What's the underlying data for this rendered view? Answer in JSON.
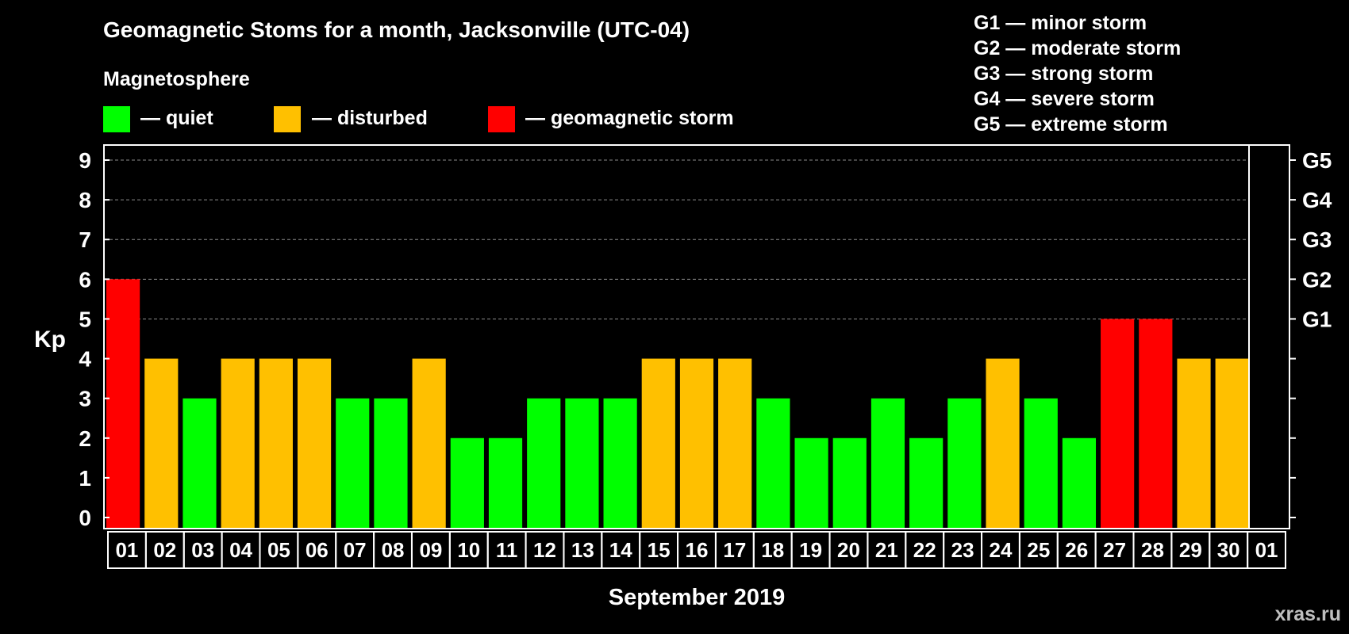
{
  "title": "Geomagnetic Stoms for a month, Jacksonville (UTC-04)",
  "legend": {
    "heading": "Magnetosphere",
    "items": [
      {
        "label": "— quiet",
        "color": "#00ff00"
      },
      {
        "label": "— disturbed",
        "color": "#ffc000"
      },
      {
        "label": "— geomagnetic storm",
        "color": "#ff0000"
      }
    ]
  },
  "storm_scale": [
    "G1 — minor storm",
    "G2 — moderate storm",
    "G3 — strong storm",
    "G4 — severe storm",
    "G5 — extreme storm"
  ],
  "watermark": "xras.ru",
  "chart_data": {
    "type": "bar",
    "title": "Geomagnetic Stoms for a month, Jacksonville (UTC-04)",
    "xlabel": "September 2019",
    "ylabel": "Kp",
    "ylim": [
      0,
      9
    ],
    "yticks": [
      "0",
      "1",
      "2",
      "3",
      "4",
      "5",
      "6",
      "7",
      "8",
      "9"
    ],
    "right_axis_labels": [
      {
        "kp": 5,
        "label": "G1"
      },
      {
        "kp": 6,
        "label": "G2"
      },
      {
        "kp": 7,
        "label": "G3"
      },
      {
        "kp": 8,
        "label": "G4"
      },
      {
        "kp": 9,
        "label": "G5"
      }
    ],
    "categories": [
      "01",
      "02",
      "03",
      "04",
      "05",
      "06",
      "07",
      "08",
      "09",
      "10",
      "11",
      "12",
      "13",
      "14",
      "15",
      "16",
      "17",
      "18",
      "19",
      "20",
      "21",
      "22",
      "23",
      "24",
      "25",
      "26",
      "27",
      "28",
      "29",
      "30",
      "01"
    ],
    "values": [
      6,
      4,
      3,
      4,
      4,
      4,
      3,
      3,
      4,
      2,
      2,
      3,
      3,
      3,
      4,
      4,
      4,
      3,
      2,
      2,
      3,
      2,
      3,
      4,
      3,
      2,
      5,
      5,
      4,
      4,
      null
    ],
    "colors": {
      "quiet": "#00ff00",
      "disturbed": "#ffc000",
      "storm": "#ff0000"
    },
    "grid": true
  }
}
